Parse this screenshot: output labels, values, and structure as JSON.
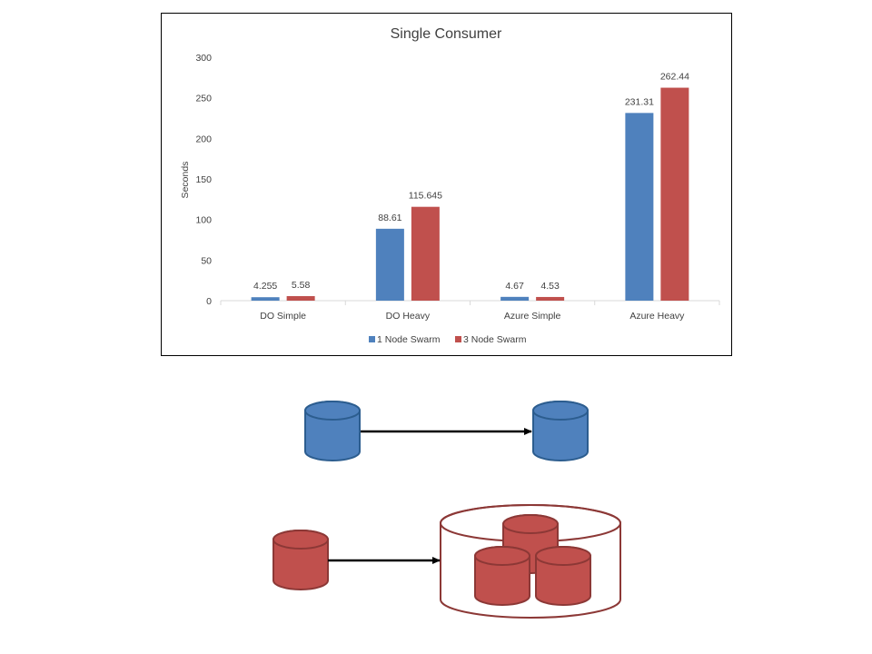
{
  "colors": {
    "series1": "#4f81bd",
    "series1_dark": "#2c5d8f",
    "series2": "#c0504d",
    "series2_dark": "#8c3836",
    "axis": "#d9d9d9"
  },
  "chart_data": {
    "type": "bar",
    "title": "Single Consumer",
    "xlabel": "",
    "ylabel": "Seconds",
    "ylim": [
      0,
      300
    ],
    "yticks": [
      0,
      50,
      100,
      150,
      200,
      250,
      300
    ],
    "grid": false,
    "legend": "bottom",
    "categories": [
      "DO Simple",
      "DO Heavy",
      "Azure Simple",
      "Azure Heavy"
    ],
    "series": [
      {
        "name": "1 Node Swarm",
        "values": [
          4.255,
          88.61,
          4.67,
          231.31
        ],
        "labels": [
          "4.255",
          "88.61",
          "4.67",
          "231.31"
        ]
      },
      {
        "name": "3 Node Swarm",
        "values": [
          5.58,
          115.645,
          4.53,
          262.44
        ],
        "labels": [
          "5.58",
          "115.645",
          "4.53",
          "262.44"
        ]
      }
    ]
  },
  "diagram": {
    "top_row": {
      "source": "single-node-db",
      "target": "single-node-db"
    },
    "bottom_row": {
      "source": "single-node-db",
      "target": "three-node-swarm-cluster"
    }
  }
}
